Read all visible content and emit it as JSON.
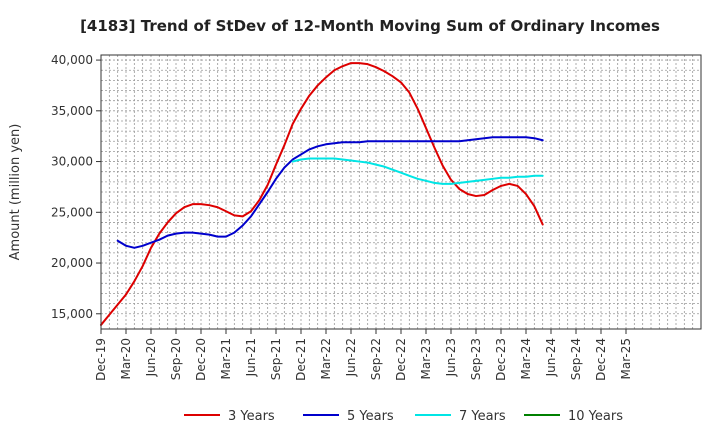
{
  "chart_data": {
    "type": "line",
    "title": "[4183]  Trend of StDev of 12-Month Moving Sum of Ordinary Incomes",
    "xlabel": "",
    "ylabel": "Amount (million yen)",
    "ylim": [
      13500,
      40500
    ],
    "yticks": [
      15000,
      20000,
      25000,
      30000,
      35000,
      40000
    ],
    "ytick_labels": [
      "15,000",
      "20,000",
      "25,000",
      "30,000",
      "35,000",
      "40,000"
    ],
    "xlim_months": [
      0,
      72
    ],
    "xticks": [
      {
        "m": 0,
        "label": "Dec-19"
      },
      {
        "m": 3,
        "label": "Mar-20"
      },
      {
        "m": 6,
        "label": "Jun-20"
      },
      {
        "m": 9,
        "label": "Sep-20"
      },
      {
        "m": 12,
        "label": "Dec-20"
      },
      {
        "m": 15,
        "label": "Mar-21"
      },
      {
        "m": 18,
        "label": "Jun-21"
      },
      {
        "m": 21,
        "label": "Sep-21"
      },
      {
        "m": 24,
        "label": "Dec-21"
      },
      {
        "m": 27,
        "label": "Mar-22"
      },
      {
        "m": 30,
        "label": "Jun-22"
      },
      {
        "m": 33,
        "label": "Sep-22"
      },
      {
        "m": 36,
        "label": "Dec-22"
      },
      {
        "m": 39,
        "label": "Mar-23"
      },
      {
        "m": 42,
        "label": "Jun-23"
      },
      {
        "m": 45,
        "label": "Sep-23"
      },
      {
        "m": 48,
        "label": "Dec-23"
      },
      {
        "m": 51,
        "label": "Mar-24"
      },
      {
        "m": 54,
        "label": "Jun-24"
      },
      {
        "m": 57,
        "label": "Sep-24"
      },
      {
        "m": 60,
        "label": "Dec-24"
      },
      {
        "m": 63,
        "label": "Mar-25"
      }
    ],
    "grid": true,
    "legend_position": "bottom",
    "series": [
      {
        "name": "3 Years",
        "color": "#dd0000",
        "points": [
          [
            0,
            13900
          ],
          [
            1,
            14900
          ],
          [
            2,
            15900
          ],
          [
            3,
            16900
          ],
          [
            4,
            18200
          ],
          [
            5,
            19700
          ],
          [
            6,
            21500
          ],
          [
            7,
            22900
          ],
          [
            8,
            24000
          ],
          [
            9,
            24900
          ],
          [
            10,
            25500
          ],
          [
            11,
            25800
          ],
          [
            12,
            25800
          ],
          [
            13,
            25700
          ],
          [
            14,
            25500
          ],
          [
            15,
            25100
          ],
          [
            16,
            24700
          ],
          [
            17,
            24600
          ],
          [
            18,
            25100
          ],
          [
            19,
            26200
          ],
          [
            20,
            27700
          ],
          [
            21,
            29700
          ],
          [
            22,
            31600
          ],
          [
            23,
            33700
          ],
          [
            24,
            35200
          ],
          [
            25,
            36500
          ],
          [
            26,
            37500
          ],
          [
            27,
            38300
          ],
          [
            28,
            39000
          ],
          [
            29,
            39400
          ],
          [
            30,
            39700
          ],
          [
            31,
            39700
          ],
          [
            32,
            39600
          ],
          [
            33,
            39300
          ],
          [
            34,
            38900
          ],
          [
            35,
            38400
          ],
          [
            36,
            37800
          ],
          [
            37,
            36800
          ],
          [
            38,
            35200
          ],
          [
            39,
            33300
          ],
          [
            40,
            31400
          ],
          [
            41,
            29600
          ],
          [
            42,
            28200
          ],
          [
            43,
            27300
          ],
          [
            44,
            26800
          ],
          [
            45,
            26600
          ],
          [
            46,
            26700
          ],
          [
            47,
            27200
          ],
          [
            48,
            27600
          ],
          [
            49,
            27800
          ],
          [
            50,
            27600
          ],
          [
            51,
            26800
          ],
          [
            52,
            25600
          ],
          [
            53,
            23800
          ]
        ]
      },
      {
        "name": "5 Years",
        "color": "#0000cc",
        "points": [
          [
            2,
            22200
          ],
          [
            3,
            21700
          ],
          [
            4,
            21500
          ],
          [
            5,
            21700
          ],
          [
            6,
            22000
          ],
          [
            7,
            22300
          ],
          [
            8,
            22700
          ],
          [
            9,
            22900
          ],
          [
            10,
            23000
          ],
          [
            11,
            23000
          ],
          [
            12,
            22900
          ],
          [
            13,
            22800
          ],
          [
            14,
            22600
          ],
          [
            15,
            22600
          ],
          [
            16,
            23000
          ],
          [
            17,
            23700
          ],
          [
            18,
            24600
          ],
          [
            19,
            25800
          ],
          [
            20,
            27000
          ],
          [
            21,
            28300
          ],
          [
            22,
            29400
          ],
          [
            23,
            30200
          ],
          [
            24,
            30700
          ],
          [
            25,
            31200
          ],
          [
            26,
            31500
          ],
          [
            27,
            31700
          ],
          [
            28,
            31800
          ],
          [
            29,
            31900
          ],
          [
            30,
            31900
          ],
          [
            31,
            31900
          ],
          [
            32,
            32000
          ],
          [
            33,
            32000
          ],
          [
            34,
            32000
          ],
          [
            35,
            32000
          ],
          [
            36,
            32000
          ],
          [
            37,
            32000
          ],
          [
            38,
            32000
          ],
          [
            39,
            32000
          ],
          [
            40,
            32000
          ],
          [
            41,
            32000
          ],
          [
            42,
            32000
          ],
          [
            43,
            32000
          ],
          [
            44,
            32100
          ],
          [
            45,
            32200
          ],
          [
            46,
            32300
          ],
          [
            47,
            32400
          ],
          [
            48,
            32400
          ],
          [
            49,
            32400
          ],
          [
            50,
            32400
          ],
          [
            51,
            32400
          ],
          [
            52,
            32300
          ],
          [
            53,
            32100
          ]
        ]
      },
      {
        "name": "7 Years",
        "color": "#00e5e5",
        "points": [
          [
            23,
            30000
          ],
          [
            24,
            30200
          ],
          [
            25,
            30300
          ],
          [
            26,
            30300
          ],
          [
            27,
            30300
          ],
          [
            28,
            30300
          ],
          [
            29,
            30200
          ],
          [
            30,
            30100
          ],
          [
            31,
            30000
          ],
          [
            32,
            29900
          ],
          [
            33,
            29700
          ],
          [
            34,
            29500
          ],
          [
            35,
            29200
          ],
          [
            36,
            28900
          ],
          [
            37,
            28600
          ],
          [
            38,
            28300
          ],
          [
            39,
            28100
          ],
          [
            40,
            27900
          ],
          [
            41,
            27800
          ],
          [
            42,
            27800
          ],
          [
            43,
            27900
          ],
          [
            44,
            28000
          ],
          [
            45,
            28100
          ],
          [
            46,
            28200
          ],
          [
            47,
            28300
          ],
          [
            48,
            28400
          ],
          [
            49,
            28400
          ],
          [
            50,
            28500
          ],
          [
            51,
            28500
          ],
          [
            52,
            28600
          ],
          [
            53,
            28600
          ]
        ]
      },
      {
        "name": "10 Years",
        "color": "#008000",
        "points": []
      }
    ]
  }
}
